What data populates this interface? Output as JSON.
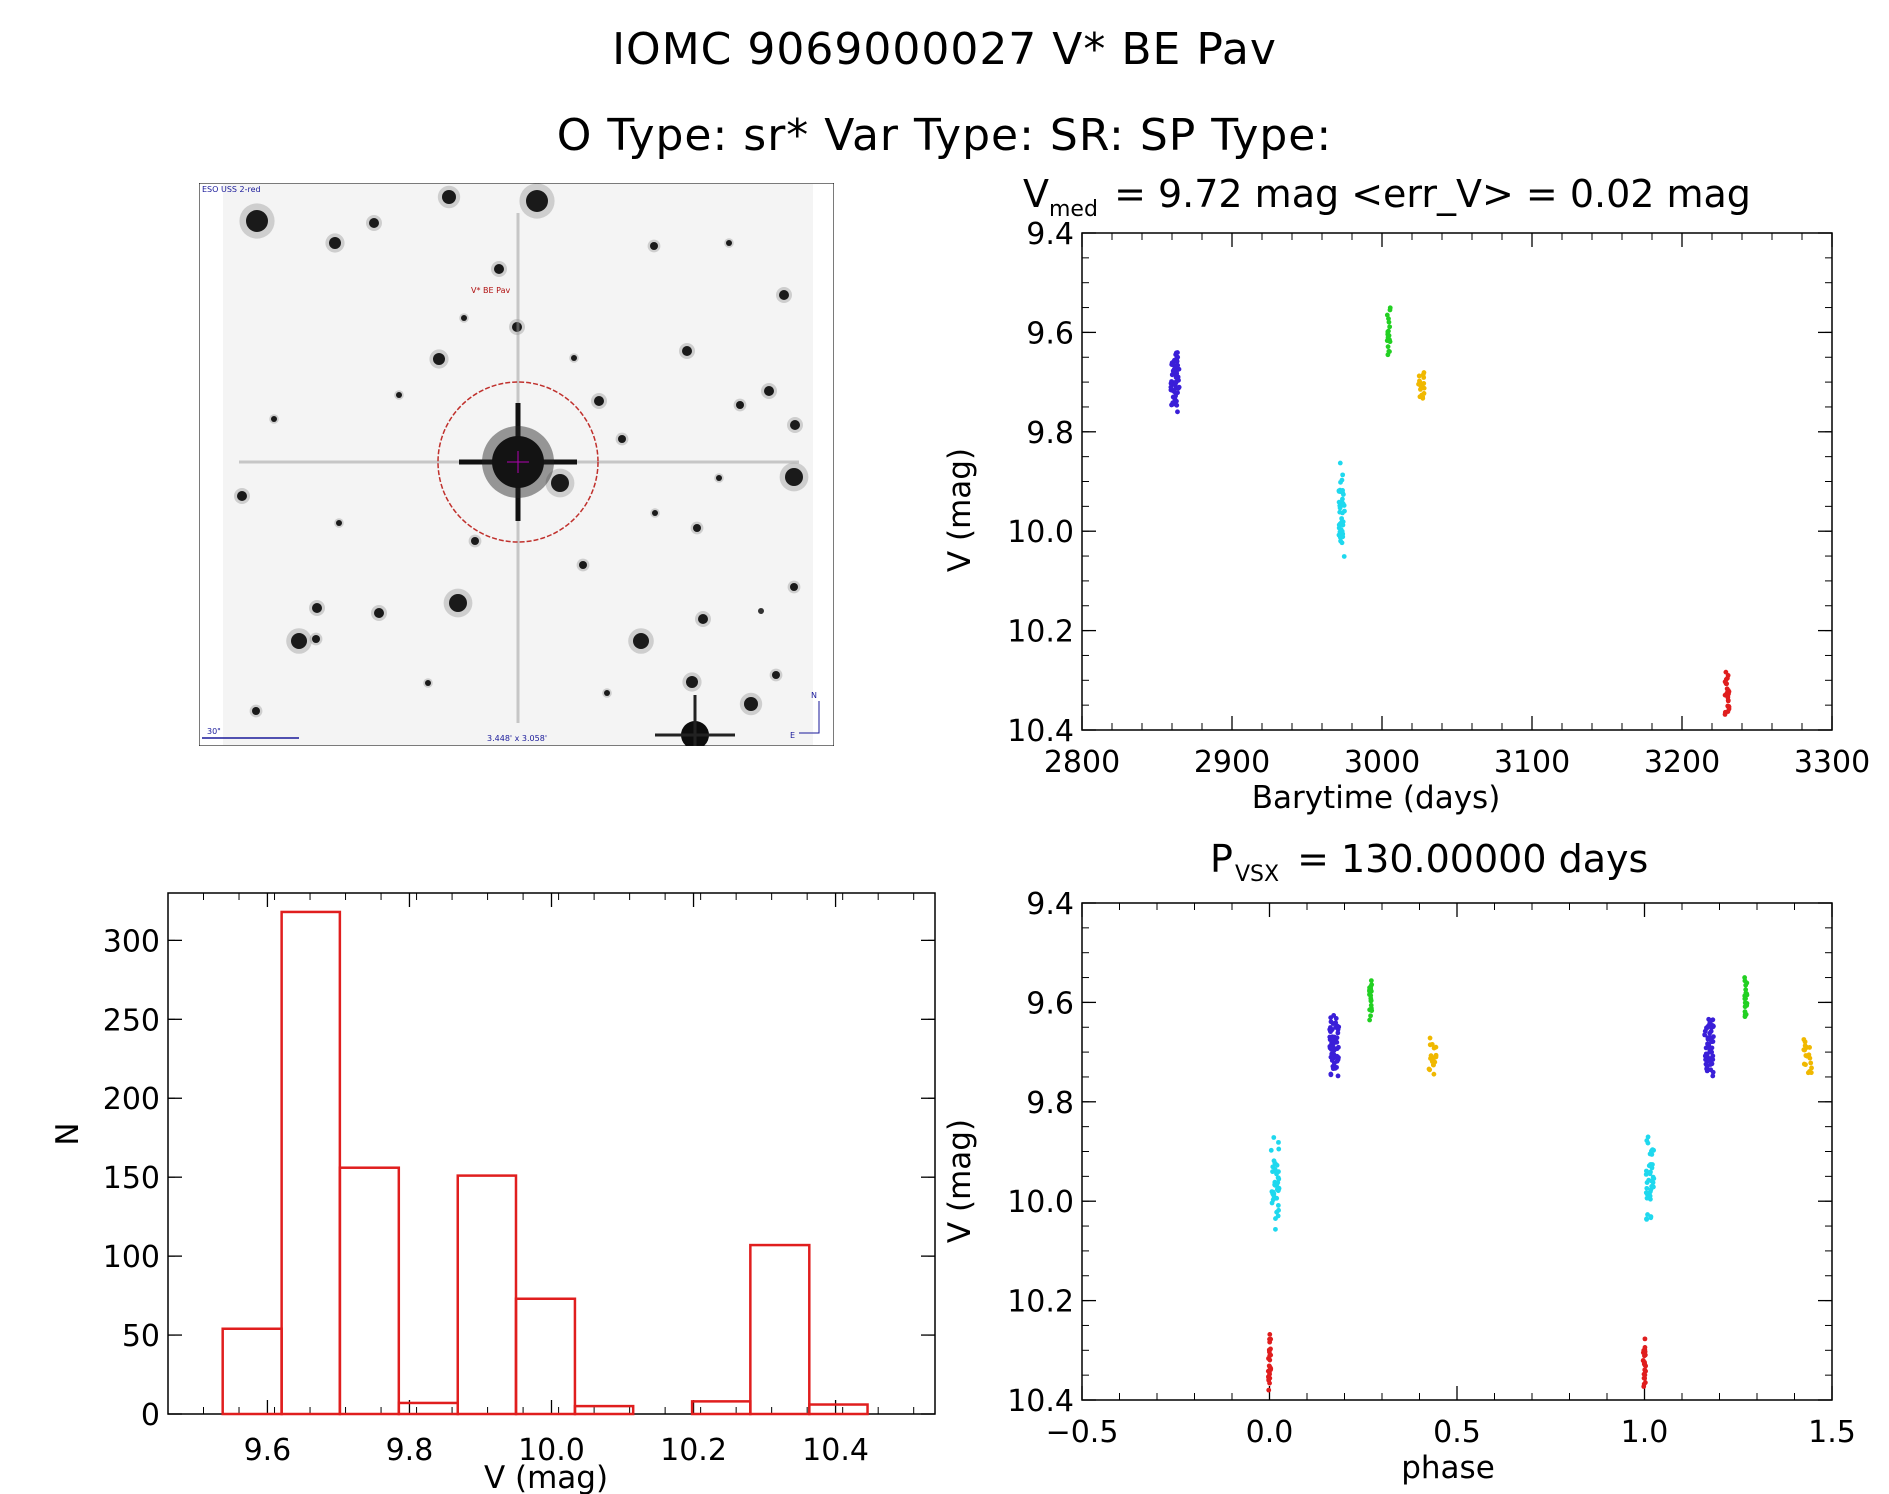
{
  "header": {
    "title": "IOMC 9069000027    V* BE Pav",
    "subtitle": "O Type: sr*  Var Type: SR:  SP Type:"
  },
  "finder_chart": {
    "survey_label": "ESO USS 2-red",
    "target_label": "V* BE Pav",
    "scale_label": "30\"",
    "fov_label": "3.448' x 3.058'",
    "north_label": "N",
    "east_label": "E",
    "circle_color": "#c0302c"
  },
  "colors": {
    "blue": "#3a1fd8",
    "cyan": "#1fd8ee",
    "green": "#22d022",
    "orange": "#f0b800",
    "red": "#e01e1e",
    "hist": "#e01e1e"
  },
  "chart_data": [
    {
      "id": "lightcurve",
      "type": "scatter",
      "title_main": "V",
      "title_sub": "med",
      "title_rest": " = 9.72 mag <err_V> = 0.02 mag",
      "xlabel": "Barytime (days)",
      "ylabel": "V (mag)",
      "xlim": [
        2800,
        3300
      ],
      "ylim": [
        10.4,
        9.4
      ],
      "y_inverted": true,
      "xticks": [
        "2800",
        "2900",
        "3000",
        "3100",
        "3200",
        "3300"
      ],
      "yticks": [
        "9.4",
        "9.6",
        "9.8",
        "10.0",
        "10.2",
        "10.4"
      ],
      "series": [
        {
          "color": "blue",
          "x_range": [
            2858,
            2866
          ],
          "y_range": [
            9.62,
            9.76
          ],
          "n": 60
        },
        {
          "color": "cyan",
          "x_range": [
            2970,
            2976
          ],
          "y_range": [
            9.86,
            10.06
          ],
          "n": 45
        },
        {
          "color": "green",
          "x_range": [
            3003,
            3006
          ],
          "y_range": [
            9.54,
            9.65
          ],
          "n": 20
        },
        {
          "color": "orange",
          "x_range": [
            3023,
            3030
          ],
          "y_range": [
            9.67,
            9.75
          ],
          "n": 18
        },
        {
          "color": "red",
          "x_range": [
            3228,
            3232
          ],
          "y_range": [
            10.26,
            10.39
          ],
          "n": 25
        }
      ]
    },
    {
      "id": "histogram",
      "type": "bar",
      "xlabel": "V (mag)",
      "ylabel": "N",
      "xlim": [
        9.46,
        10.54
      ],
      "ylim": [
        0,
        330
      ],
      "xticks": [
        "9.6",
        "9.8",
        "10.0",
        "10.2",
        "10.4"
      ],
      "yticks": [
        "0",
        "50",
        "100",
        "150",
        "200",
        "250",
        "300"
      ],
      "bin_edges": [
        9.537,
        9.62,
        9.702,
        9.785,
        9.868,
        9.95,
        10.033,
        10.115,
        10.198,
        10.28,
        10.363,
        10.445
      ],
      "values": [
        54,
        318,
        156,
        7,
        151,
        73,
        5,
        0,
        8,
        107,
        6
      ]
    },
    {
      "id": "phased",
      "type": "scatter",
      "title_main": "P",
      "title_sub": "VSX",
      "title_rest": " = 130.00000 days",
      "xlabel": "phase",
      "ylabel": "V (mag)",
      "xlim": [
        -0.5,
        1.5
      ],
      "ylim": [
        10.4,
        9.4
      ],
      "y_inverted": true,
      "xticks": [
        "−0.5",
        "0.0",
        "0.5",
        "1.0",
        "1.5"
      ],
      "yticks": [
        "9.4",
        "9.6",
        "9.8",
        "10.0",
        "10.2",
        "10.4"
      ],
      "series": [
        {
          "color": "blue",
          "x_range": [
            0.155,
            0.19
          ],
          "y_range": [
            9.62,
            9.76
          ],
          "n": 60
        },
        {
          "color": "blue",
          "x_range": [
            1.155,
            1.19
          ],
          "y_range": [
            9.62,
            9.76
          ],
          "n": 60
        },
        {
          "color": "cyan",
          "x_range": [
            0.0,
            0.03
          ],
          "y_range": [
            9.86,
            10.06
          ],
          "n": 45
        },
        {
          "color": "cyan",
          "x_range": [
            1.0,
            1.03
          ],
          "y_range": [
            9.86,
            10.06
          ],
          "n": 45
        },
        {
          "color": "green",
          "x_range": [
            0.265,
            0.275
          ],
          "y_range": [
            9.54,
            9.65
          ],
          "n": 20
        },
        {
          "color": "green",
          "x_range": [
            1.265,
            1.275
          ],
          "y_range": [
            9.54,
            9.65
          ],
          "n": 20
        },
        {
          "color": "orange",
          "x_range": [
            0.42,
            0.45
          ],
          "y_range": [
            9.67,
            9.75
          ],
          "n": 18
        },
        {
          "color": "orange",
          "x_range": [
            1.42,
            1.45
          ],
          "y_range": [
            9.67,
            9.75
          ],
          "n": 18
        },
        {
          "color": "red",
          "x_range": [
            -0.005,
            0.005
          ],
          "y_range": [
            10.26,
            10.39
          ],
          "n": 25
        },
        {
          "color": "red",
          "x_range": [
            0.995,
            1.005
          ],
          "y_range": [
            10.26,
            10.39
          ],
          "n": 25
        }
      ]
    }
  ]
}
